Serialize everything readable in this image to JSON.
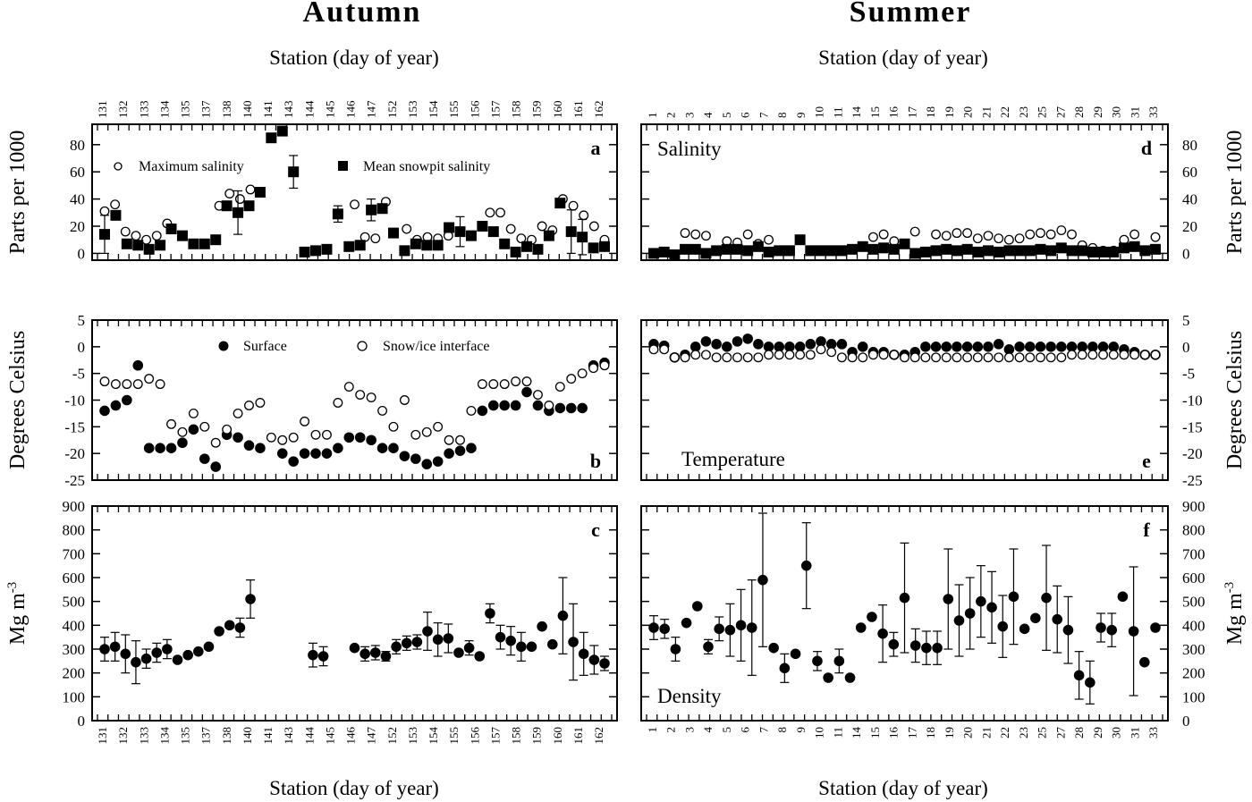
{
  "titles": {
    "autumn": "Autumn",
    "summer": "Summer"
  },
  "station_axis_label": "Station (day of year)",
  "chart_data": [
    {
      "id": "a",
      "type": "scatter",
      "panel_letter": "a",
      "title": "",
      "ylabel": "Parts per 1000",
      "ylim": [
        -5,
        95
      ],
      "yticks": [
        0,
        20,
        40,
        60,
        80
      ],
      "legend": [
        "Maximum salinity",
        "Mean snowpit salinity"
      ],
      "legend_placement": "top",
      "station_ticks": [
        "131",
        "132",
        "133",
        "134",
        "135",
        "137",
        "138",
        "140",
        "141",
        "143",
        "144",
        "145",
        "146",
        "147",
        "152",
        "153",
        "154",
        "155",
        "156",
        "157",
        "158",
        "159",
        "160",
        "161",
        "162"
      ],
      "series": [
        {
          "name": "Maximum salinity",
          "marker": "open-circle",
          "values": [
            31,
            36,
            16,
            13,
            10,
            13,
            22,
            null,
            null,
            null,
            null,
            35,
            44,
            40,
            47,
            null,
            null,
            null,
            null,
            null,
            null,
            null,
            null,
            null,
            36,
            12,
            11,
            38,
            null,
            18,
            10,
            12,
            11,
            13,
            null,
            null,
            null,
            30,
            30,
            18,
            11,
            10,
            20,
            17,
            40,
            35,
            28,
            20,
            10
          ]
        },
        {
          "name": "Mean snowpit salinity",
          "marker": "filled-square",
          "values": [
            14,
            28,
            7,
            6,
            3,
            6,
            18,
            13,
            7,
            7,
            10,
            35,
            30,
            35,
            45,
            85,
            90,
            60,
            1,
            2,
            3,
            29,
            5,
            6,
            32,
            33,
            15,
            2,
            7,
            6,
            6,
            19,
            16,
            13,
            20,
            16,
            7,
            1,
            5,
            3,
            13,
            37,
            16,
            12,
            4,
            5
          ]
        },
        {
          "name": "Mean snowpit salinity error",
          "marker": "error-bar",
          "values": [
            14,
            null,
            null,
            null,
            null,
            null,
            null,
            null,
            null,
            null,
            null,
            null,
            16,
            null,
            null,
            null,
            null,
            12,
            null,
            null,
            null,
            6,
            null,
            null,
            8,
            null,
            null,
            null,
            null,
            null,
            null,
            null,
            11,
            null,
            null,
            null,
            null,
            null,
            null,
            null,
            null,
            null,
            16,
            13,
            null,
            null
          ]
        }
      ]
    },
    {
      "id": "b",
      "type": "scatter",
      "panel_letter": "b",
      "title": "",
      "ylabel": "Degrees Celsius",
      "ylim": [
        -25,
        5
      ],
      "yticks": [
        5,
        0,
        -5,
        -10,
        -15,
        -20,
        -25
      ],
      "legend": [
        "Surface",
        "Snow/ice interface"
      ],
      "legend_placement": "top",
      "series": [
        {
          "name": "Surface",
          "marker": "filled-circle",
          "values": [
            -12,
            -11,
            -10,
            -3.5,
            -19,
            -19,
            -19,
            -18,
            -15.5,
            -21,
            -22.5,
            -16.5,
            -17,
            -18.5,
            -19,
            null,
            -20,
            -21.5,
            -20,
            -20,
            -20,
            -19,
            -17,
            -17,
            -17.5,
            -19,
            -19,
            -20.5,
            -21,
            -22,
            -21.5,
            -20,
            -19.5,
            -19,
            -12,
            -11,
            -11,
            -11,
            -8.5,
            -11,
            -12,
            -11.5,
            -11.5,
            -11.5,
            -3.5,
            -3
          ]
        },
        {
          "name": "Snow/ice interface",
          "marker": "open-circle",
          "values": [
            -6.5,
            -7,
            -7,
            -7,
            -6,
            -7,
            -14.5,
            -16,
            -12.5,
            -15,
            -18,
            -15.5,
            -12.5,
            -11,
            -10.5,
            -17,
            -17.5,
            -17,
            -14,
            -16.5,
            -16.5,
            -10.5,
            -7.5,
            -9,
            -9.5,
            -12,
            -15,
            -10,
            -16.5,
            -16,
            -15,
            -17.5,
            -17.5,
            -12,
            -7,
            -7,
            -7,
            -6.5,
            -6.5,
            -9,
            -11,
            -7.5,
            -6,
            -5,
            -4,
            -3.5
          ]
        }
      ]
    },
    {
      "id": "c",
      "type": "scatter",
      "panel_letter": "c",
      "title": "",
      "ylabel": "Mg m",
      "ylabel_superscript": "-3",
      "ylim": [
        0,
        900
      ],
      "yticks": [
        0,
        100,
        200,
        300,
        400,
        500,
        600,
        700,
        800,
        900
      ],
      "series": [
        {
          "name": "Density",
          "marker": "filled-circle",
          "values": [
            300,
            310,
            280,
            245,
            260,
            285,
            300,
            255,
            275,
            290,
            310,
            375,
            400,
            390,
            510,
            null,
            null,
            null,
            null,
            null,
            275,
            270,
            null,
            null,
            305,
            280,
            285,
            270,
            310,
            325,
            330,
            375,
            340,
            345,
            285,
            305,
            270,
            450,
            350,
            335,
            310,
            310,
            395,
            320,
            440,
            330,
            280,
            255,
            240
          ]
        },
        {
          "name": "Density error",
          "marker": "error-bar",
          "values": [
            50,
            60,
            80,
            90,
            40,
            40,
            40,
            null,
            null,
            null,
            null,
            null,
            null,
            40,
            80,
            null,
            null,
            null,
            null,
            null,
            50,
            40,
            null,
            null,
            null,
            30,
            30,
            20,
            30,
            30,
            30,
            80,
            70,
            60,
            null,
            30,
            null,
            40,
            50,
            60,
            60,
            null,
            null,
            null,
            160,
            160,
            90,
            60,
            30
          ]
        }
      ]
    },
    {
      "id": "d",
      "type": "scatter",
      "panel_letter": "d",
      "title": "Salinity",
      "ylabel": "Parts per 1000",
      "ylim": [
        -5,
        95
      ],
      "yticks": [
        0,
        20,
        40,
        60,
        80
      ],
      "station_ticks": [
        "1",
        "2",
        "3",
        "4",
        "5",
        "6",
        "7",
        "8",
        "9",
        "10",
        "11",
        "14",
        "15",
        "16",
        "17",
        "18",
        "19",
        "20",
        "21",
        "22",
        "23",
        "25",
        "27",
        "28",
        "29",
        "30",
        "31",
        "33"
      ],
      "series": [
        {
          "name": "Maximum salinity",
          "marker": "open-circle",
          "values": [
            null,
            null,
            null,
            15,
            14,
            13,
            null,
            9,
            8,
            14,
            7,
            10,
            null,
            null,
            null,
            null,
            null,
            null,
            null,
            null,
            null,
            12,
            14,
            9,
            7,
            16,
            null,
            14,
            13,
            15,
            15,
            11,
            13,
            11,
            10,
            11,
            14,
            15,
            14,
            17,
            14,
            6,
            4,
            2,
            2,
            10,
            14,
            null,
            12
          ]
        },
        {
          "name": "Mean snowpit salinity",
          "marker": "filled-square",
          "values": [
            0,
            1,
            -1,
            3,
            3,
            0,
            2,
            3,
            3,
            2,
            5,
            1,
            2,
            2,
            10,
            2,
            2,
            2,
            2,
            3,
            5,
            3,
            4,
            3,
            7,
            0,
            1,
            2,
            3,
            2,
            3,
            1,
            2,
            1,
            2,
            2,
            2,
            3,
            2,
            4,
            2,
            2,
            1,
            1,
            1,
            4,
            5,
            2,
            3
          ]
        }
      ]
    },
    {
      "id": "e",
      "type": "scatter",
      "panel_letter": "e",
      "title": "Temperature",
      "ylabel": "Degrees Celsius",
      "ylim": [
        -25,
        5
      ],
      "yticks": [
        5,
        0,
        -5,
        -10,
        -15,
        -20,
        -25
      ],
      "series": [
        {
          "name": "Surface",
          "marker": "filled-circle",
          "values": [
            0.5,
            0.2,
            -2,
            -1.5,
            0,
            1,
            0.5,
            0,
            1,
            1.5,
            0.5,
            0,
            0,
            0,
            0,
            0.5,
            1,
            0.5,
            0.5,
            -1,
            0,
            -1,
            -1,
            -1.5,
            -1.5,
            -1,
            0,
            0,
            0,
            0,
            0,
            0,
            0,
            0.5,
            -0.5,
            0,
            0,
            0,
            0,
            0,
            0,
            0,
            0,
            0,
            0,
            -0.5,
            -1,
            -1.5,
            -1.5
          ]
        },
        {
          "name": "Snow/ice interface",
          "marker": "open-circle",
          "values": [
            -0.5,
            -0.5,
            -2,
            -2,
            -1.5,
            -1.5,
            -2,
            -2,
            -2,
            -2,
            -2,
            -1.5,
            -1.5,
            -1.5,
            -1.5,
            -1.5,
            -0.5,
            -1,
            -2,
            -2,
            -2,
            -1.5,
            -1.5,
            -1.5,
            -2,
            -2,
            -2,
            -2,
            -2,
            -2,
            -2,
            -2,
            -2,
            -2,
            -2,
            -2,
            -2,
            -2,
            -2,
            -2,
            -1.5,
            -1.5,
            -1.5,
            -1.5,
            -1.5,
            -1.5,
            -1.5,
            -1.5,
            -1.5
          ]
        }
      ]
    },
    {
      "id": "f",
      "type": "scatter",
      "panel_letter": "f",
      "title": "Density",
      "ylabel": "Mg m",
      "ylabel_superscript": "-3",
      "ylim": [
        0,
        900
      ],
      "yticks": [
        0,
        100,
        200,
        300,
        400,
        500,
        600,
        700,
        800,
        900
      ],
      "series": [
        {
          "name": "Density",
          "marker": "filled-circle",
          "values": [
            390,
            385,
            300,
            410,
            480,
            310,
            385,
            380,
            400,
            390,
            590,
            305,
            220,
            280,
            650,
            250,
            180,
            250,
            180,
            390,
            435,
            365,
            320,
            515,
            315,
            305,
            305,
            510,
            420,
            450,
            500,
            475,
            395,
            520,
            385,
            430,
            515,
            425,
            380,
            190,
            160,
            390,
            380,
            520,
            375,
            245,
            390
          ]
        },
        {
          "name": "Density error",
          "marker": "error-bar",
          "values": [
            50,
            40,
            50,
            null,
            null,
            30,
            50,
            110,
            150,
            200,
            280,
            null,
            60,
            null,
            180,
            40,
            null,
            50,
            null,
            null,
            null,
            120,
            50,
            230,
            70,
            70,
            70,
            210,
            150,
            150,
            150,
            150,
            130,
            200,
            null,
            null,
            220,
            140,
            140,
            100,
            90,
            60,
            70,
            null,
            270,
            null,
            null
          ]
        }
      ]
    }
  ]
}
